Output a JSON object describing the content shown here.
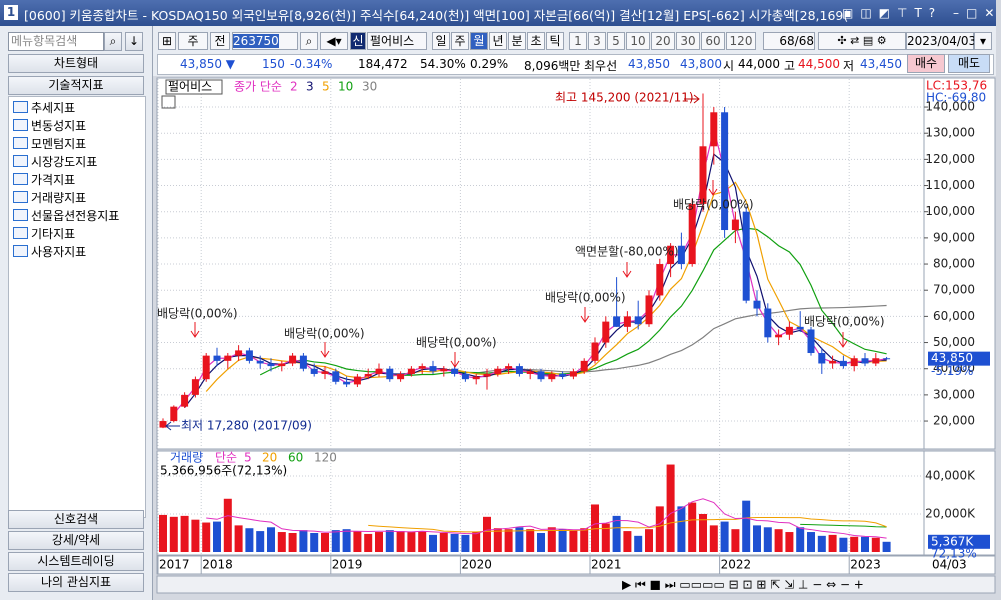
{
  "window": {
    "icon": "1",
    "title": "[0600] 키움종합차트 - KOSDAQ150 외국인보유[8,926(천)] 주식수[64,240(천)] 액면[100] 자본금[66(억)] 결산[12월] EPS[-662] 시가총액[28,169("
  },
  "sidebar": {
    "search": "메뉴항목검색",
    "tabs": [
      "차트형태",
      "기술적지표"
    ],
    "tree": [
      "추세지표",
      "변동성지표",
      "모멘텀지표",
      "시장강도지표",
      "가격지표",
      "거래량지표",
      "선물옵션전용지표",
      "기타지표",
      "사용자지표"
    ],
    "bottom": [
      "신호검색",
      "강세/약세",
      "시스템트레이딩",
      "나의 관심지표"
    ]
  },
  "toolbar": {
    "period_label": "주",
    "mode": "전",
    "code": "263750",
    "new": "신",
    "name": "펄어비스",
    "periods": [
      "일",
      "주",
      "월",
      "년",
      "분",
      "초",
      "틱"
    ],
    "selected_period": "월",
    "intervals": [
      "1",
      "3",
      "5",
      "10",
      "20",
      "30",
      "60",
      "120"
    ],
    "count": "68/68",
    "date": "2023/04/03"
  },
  "quote": {
    "price": "43,850 ▼",
    "change": "150",
    "rate": "-0.34%",
    "volume": "184,472",
    "vol_rate": "54.30%",
    "turnover_rate": "0.29%",
    "amount": "8,096백만",
    "best_label": "최우선",
    "ask": "43,850",
    "bid": "43,800",
    "open_label": "시",
    "open": "44,000",
    "high_label": "고",
    "high": "44,500",
    "low_label": "저",
    "low": "43,450",
    "buy": "매수",
    "sell": "매도"
  },
  "chart_data": {
    "type": "candlestick",
    "name": "펄어비스",
    "ma_label": "종가 단순",
    "ma": [
      {
        "name": "2",
        "color": "#e030c0"
      },
      {
        "name": "3",
        "color": "#101070"
      },
      {
        "name": "5",
        "color": "#f0a000"
      },
      {
        "name": "10",
        "color": "#10a010"
      },
      {
        "name": "30",
        "color": "#808080"
      }
    ],
    "up_color": "#e8141e",
    "down_color": "#1e50d2",
    "categories": [
      "2017",
      null,
      null,
      null,
      "2018",
      null,
      null,
      null,
      null,
      null,
      null,
      null,
      null,
      null,
      null,
      null,
      "2019",
      null,
      null,
      null,
      null,
      null,
      null,
      null,
      null,
      null,
      null,
      null,
      "2020",
      null,
      null,
      null,
      null,
      null,
      null,
      null,
      null,
      null,
      null,
      null,
      "2021",
      null,
      null,
      null,
      null,
      null,
      null,
      null,
      null,
      null,
      null,
      null,
      "2022",
      null,
      null,
      null,
      null,
      null,
      null,
      null,
      null,
      null,
      null,
      null,
      "2023",
      null,
      null,
      null
    ],
    "last_date_label": "04/03",
    "open": [
      17500,
      20000,
      25500,
      30000,
      36000,
      45000,
      43000,
      45000,
      47000,
      43000,
      42000,
      41000,
      42000,
      45000,
      40000,
      38000,
      39000,
      35000,
      34000,
      37000,
      38000,
      40000,
      36000,
      38000,
      40000,
      41000,
      39000,
      40000,
      38000,
      36000,
      37000,
      38000,
      40000,
      41000,
      38000,
      39000,
      36000,
      38000,
      37000,
      39000,
      43000,
      50000,
      60000,
      56000,
      60000,
      57000,
      68000,
      80000,
      87000,
      80000,
      103000,
      125000,
      138000,
      93000,
      100000,
      66000,
      63000,
      52000,
      53000,
      56000,
      55000,
      46000,
      42000,
      43000,
      41000,
      44000,
      42000,
      44000
    ],
    "high": [
      21000,
      26000,
      31000,
      37000,
      46000,
      48000,
      46000,
      49000,
      48000,
      45000,
      44000,
      43000,
      46000,
      46000,
      42000,
      41000,
      40000,
      37000,
      38000,
      40000,
      42000,
      41000,
      39000,
      41000,
      42000,
      43000,
      41000,
      41000,
      39000,
      38000,
      40000,
      41000,
      42000,
      42000,
      40000,
      40000,
      39000,
      39000,
      40000,
      44000,
      52000,
      60000,
      75000,
      62000,
      66000,
      70000,
      82000,
      88000,
      92000,
      105000,
      145200,
      140000,
      140000,
      100000,
      102000,
      70000,
      65000,
      55000,
      58000,
      62000,
      56000,
      48000,
      45000,
      45000,
      45000,
      46000,
      46000,
      44500
    ],
    "low": [
      17280,
      19500,
      25000,
      29000,
      35000,
      41000,
      40000,
      43000,
      42000,
      40000,
      39000,
      39000,
      41000,
      39000,
      37000,
      36000,
      34000,
      33000,
      33000,
      36000,
      37000,
      35000,
      35000,
      37000,
      38000,
      38000,
      37000,
      37000,
      35000,
      34000,
      32000,
      37000,
      38000,
      37000,
      36000,
      35000,
      35000,
      36000,
      36000,
      38000,
      42000,
      48000,
      56000,
      54000,
      55000,
      56000,
      66000,
      75000,
      78000,
      79000,
      100000,
      118000,
      90000,
      88000,
      65000,
      60000,
      50000,
      49000,
      51000,
      54000,
      45000,
      38000,
      40000,
      40000,
      39000,
      41000,
      41000,
      43450
    ],
    "close": [
      20000,
      25500,
      30000,
      36000,
      45000,
      43000,
      45000,
      47000,
      43000,
      42000,
      41000,
      42000,
      45000,
      40000,
      38000,
      39000,
      35000,
      34000,
      37000,
      38000,
      40000,
      36000,
      38000,
      40000,
      41000,
      39000,
      40000,
      38000,
      36000,
      37000,
      38000,
      40000,
      41000,
      38000,
      39000,
      36000,
      38000,
      37000,
      39000,
      43000,
      50000,
      58000,
      56000,
      60000,
      57000,
      68000,
      80000,
      87000,
      80000,
      103000,
      125000,
      138000,
      93000,
      97000,
      66000,
      63000,
      52000,
      53000,
      56000,
      55000,
      46000,
      42000,
      43000,
      41000,
      44000,
      42000,
      44000,
      43850
    ],
    "ylim": [
      9700,
      151100
    ],
    "yticks": [
      {
        "value": 140000,
        "label": "140,000"
      },
      {
        "value": 130000,
        "label": "130,000"
      },
      {
        "value": 120000,
        "label": "120,000"
      },
      {
        "value": 110000,
        "label": "110,000"
      },
      {
        "value": 100000,
        "label": "100,000"
      },
      {
        "value": 90000,
        "label": "90,000"
      },
      {
        "value": 80000,
        "label": "80,000"
      },
      {
        "value": 70000,
        "label": "70,000"
      },
      {
        "value": 60000,
        "label": "60,000"
      },
      {
        "value": 50000,
        "label": "50,000"
      },
      {
        "value": 40000,
        "label": "40,000"
      },
      {
        "value": 30000,
        "label": "30,000"
      },
      {
        "value": 20000,
        "label": "20,000"
      }
    ],
    "lc": "LC:153,76",
    "hc": "HC:-69,80",
    "price_tag": "43,850",
    "price_rate": "-5.19%",
    "annotations": [
      "최고 145,200 (2021/11)",
      "최저 17,280 (2017/09)",
      "배당락(0,00%)",
      "배당락(0,00%)",
      "배당락(0,00%)",
      "배당락(0,00%)",
      "액면분할(-80,00%)",
      "배당락(0,00%)",
      "배당락(0,00%)"
    ],
    "volume": {
      "label": "거래량",
      "ma_label": "단순",
      "ma": [
        {
          "name": "5",
          "color": "#e030c0"
        },
        {
          "name": "20",
          "color": "#f0a000"
        },
        {
          "name": "60",
          "color": "#10a010"
        },
        {
          "name": "120",
          "color": "#808080"
        }
      ],
      "info": "5,366,956주(72,13%)",
      "tag": "5,367K",
      "rate": "72,13%",
      "values": [
        19500,
        18500,
        19000,
        17000,
        15500,
        16000,
        28000,
        14000,
        12500,
        11000,
        13000,
        10500,
        10000,
        11500,
        10000,
        10000,
        11500,
        12000,
        11000,
        9500,
        10500,
        11500,
        11000,
        10500,
        11000,
        9000,
        10000,
        9500,
        9000,
        10500,
        18500,
        12500,
        12000,
        13000,
        12000,
        10000,
        13000,
        12000,
        11500,
        12500,
        25000,
        15000,
        19000,
        11000,
        8500,
        12000,
        24000,
        46000,
        24000,
        26000,
        20000,
        14000,
        16000,
        12000,
        27000,
        14000,
        13000,
        12000,
        10500,
        13000,
        10500,
        8500,
        9000,
        7500,
        8000,
        8000,
        7500,
        5367
      ],
      "ylim": [
        0,
        52600
      ],
      "yticks": [
        {
          "value": 40000,
          "label": "40,000K"
        },
        {
          "value": 20000,
          "label": "20,000K"
        }
      ]
    }
  }
}
